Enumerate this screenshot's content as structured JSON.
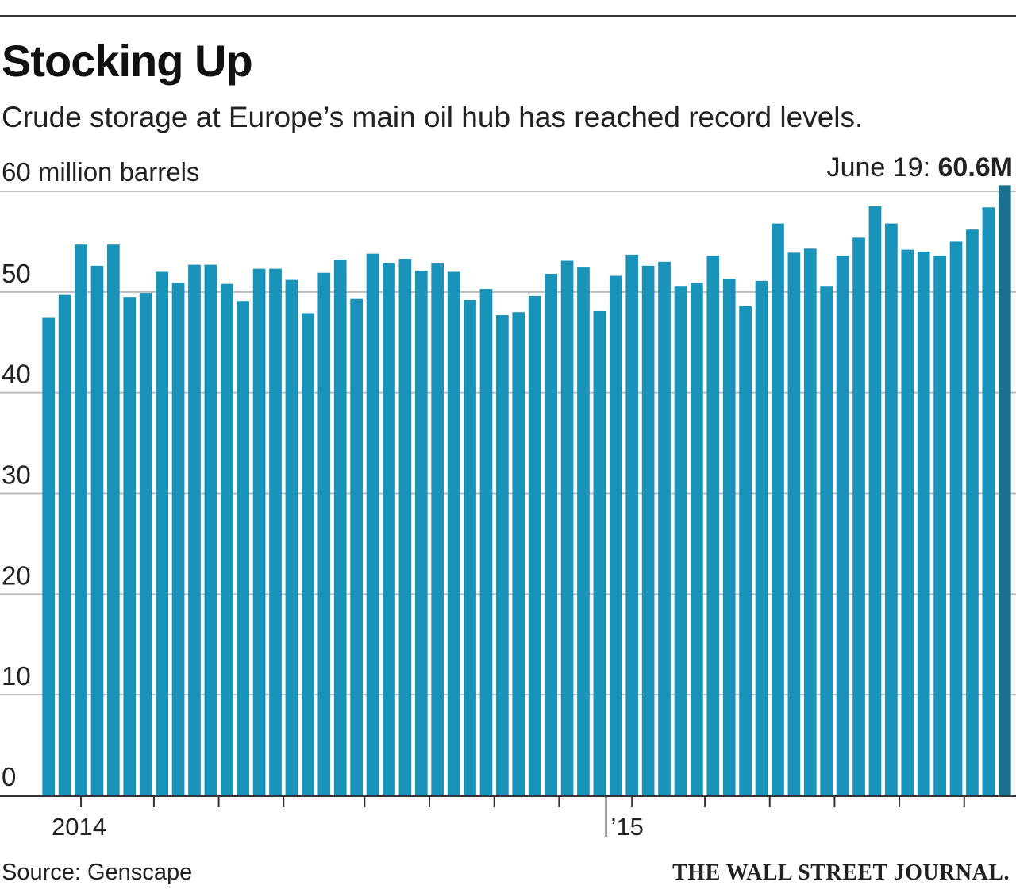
{
  "header": {
    "title": "Stocking Up",
    "subtitle": "Crude storage at Europe’s main oil hub has reached record levels."
  },
  "footer": {
    "source": "Source: Genscape",
    "brand": "THE WALL STREET JOURNAL."
  },
  "colors": {
    "bar": "#1a93ba",
    "bar_highlight": "#1a6f8e",
    "grid": "#bdbdbd",
    "axis": "#333333",
    "text": "#222222"
  },
  "chart_data": {
    "type": "bar",
    "ylabel": "60 million barrels",
    "ylim": [
      0,
      60
    ],
    "yticks": [
      0,
      10,
      20,
      30,
      40,
      50,
      60
    ],
    "ytick_labels": [
      "0",
      "10",
      "20",
      "30",
      "40",
      "50",
      ""
    ],
    "x_labels": [
      {
        "text": "2014",
        "index": 2
      },
      {
        "text": "’15",
        "index": 34
      }
    ],
    "annotation": {
      "prefix": "June 19: ",
      "value": "60.6M",
      "index": 59
    },
    "grid": true,
    "values": [
      47.5,
      49.7,
      54.7,
      52.6,
      54.7,
      49.5,
      49.9,
      52.0,
      50.9,
      52.7,
      52.7,
      50.8,
      49.1,
      52.3,
      52.3,
      51.2,
      47.9,
      51.9,
      53.2,
      49.3,
      53.8,
      52.9,
      53.3,
      52.1,
      52.9,
      52.0,
      49.2,
      50.3,
      47.7,
      48.0,
      49.6,
      51.8,
      53.1,
      52.5,
      48.1,
      51.6,
      53.7,
      52.6,
      53.0,
      50.6,
      50.9,
      53.6,
      51.3,
      48.6,
      51.1,
      56.8,
      53.9,
      54.3,
      50.6,
      53.6,
      55.4,
      58.5,
      56.8,
      54.2,
      54.0,
      53.6,
      55.0,
      56.2,
      58.4,
      60.6
    ],
    "highlight_index": 59
  }
}
